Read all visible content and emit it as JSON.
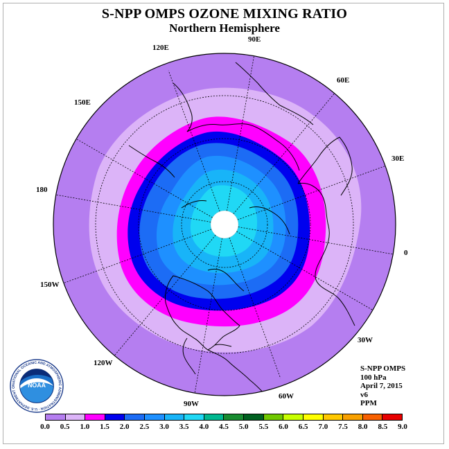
{
  "title": "S-NPP OMPS OZONE MIXING RATIO",
  "subtitle": "Northern Hemisphere",
  "longitude_labels": [
    "90E",
    "60E",
    "30E",
    "0",
    "30W",
    "60W",
    "90W",
    "120W",
    "150W",
    "180",
    "150E",
    "120E"
  ],
  "info": {
    "instrument": "S-NPP OMPS",
    "level": "100 hPa",
    "date": "April 7, 2015",
    "version": "v6",
    "units": "PPM"
  },
  "logo": {
    "text": "NOAA",
    "ring_text": "NATIONAL OCEANIC AND ATMOSPHERIC ADMINISTRATION · U.S. DEPARTMENT OF COMMERCE"
  },
  "colorbar": {
    "ticks": [
      "0.0",
      "0.5",
      "1.0",
      "1.5",
      "2.0",
      "2.5",
      "3.0",
      "3.5",
      "4.0",
      "4.5",
      "5.0",
      "5.5",
      "6.0",
      "6.5",
      "7.0",
      "7.5",
      "8.0",
      "8.5",
      "9.0"
    ],
    "colors": [
      "#b57ef0",
      "#dcb4f8",
      "#ff00ff",
      "#0000ee",
      "#1c6cf5",
      "#1e90ff",
      "#18b4f8",
      "#20d8f5",
      "#00b890",
      "#188c30",
      "#006020",
      "#70c800",
      "#c8ff00",
      "#ffff00",
      "#ffc800",
      "#f8a000",
      "#f86000",
      "#e80000",
      "#905030"
    ]
  },
  "map_colors": {
    "background": "#b57ef0",
    "band_05": "#dcb4f8",
    "band_10": "#ff00ff",
    "band_15": "#0000ee",
    "band_20": "#1c6cf5",
    "band_25": "#1e90ff",
    "band_30": "#18b4f8",
    "band_35": "#20d8f5"
  }
}
